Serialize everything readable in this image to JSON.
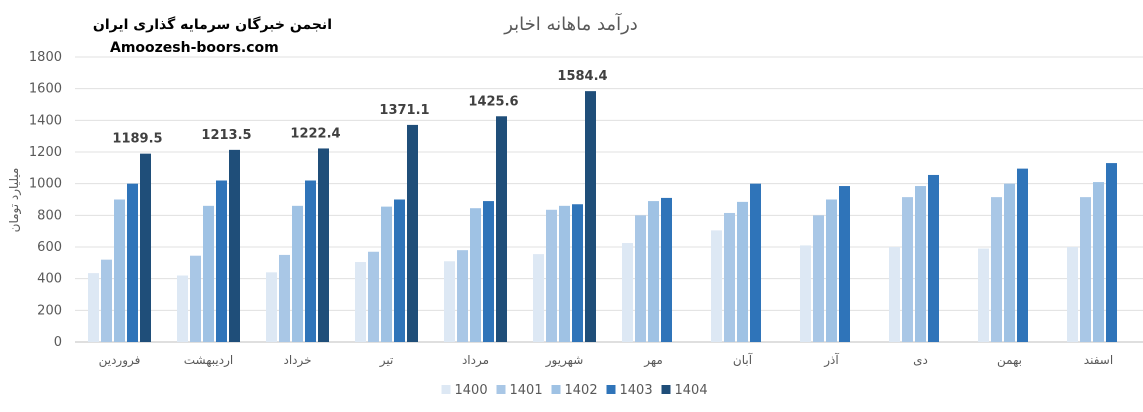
{
  "watermark": {
    "line1": "انجمن خبرگان سرمایه گذاری ایران",
    "line2": "Amoozesh-boors.com"
  },
  "chart_data": {
    "type": "bar",
    "title": "درآمد ماهانه  اخابر",
    "ylabel": "میلیارد تومان",
    "xlabel": "",
    "ylim": [
      0,
      1800
    ],
    "yticks": [
      0,
      200,
      400,
      600,
      800,
      1000,
      1200,
      1400,
      1600,
      1800
    ],
    "grid": true,
    "legend_position": "bottom",
    "categories": [
      "فروردین",
      "اردیبهشت",
      "خرداد",
      "تیر",
      "مرداد",
      "شهریور",
      "مهر",
      "آبان",
      "آذر",
      "دی",
      "بهمن",
      "اسفند"
    ],
    "series": [
      {
        "name": "1400",
        "color": "#dde8f4",
        "values": [
          435,
          420,
          440,
          505,
          510,
          555,
          625,
          705,
          610,
          600,
          590,
          600
        ]
      },
      {
        "name": "1401",
        "color": "#a9c7e6",
        "values": [
          520,
          545,
          550,
          570,
          580,
          835,
          800,
          815,
          800,
          915,
          915,
          915
        ]
      },
      {
        "name": "1402",
        "color": "#9fc2e4",
        "values": [
          900,
          860,
          860,
          855,
          845,
          860,
          890,
          885,
          900,
          985,
          1000,
          1010
        ]
      },
      {
        "name": "1403",
        "color": "#2f74b9",
        "values": [
          1000,
          1020,
          1020,
          900,
          890,
          870,
          910,
          1000,
          985,
          1055,
          1095,
          1130
        ]
      },
      {
        "name": "1404",
        "color": "#1f4e79",
        "values": [
          1189.5,
          1213.5,
          1222.4,
          1371.1,
          1425.6,
          1584.4,
          null,
          null,
          null,
          null,
          null,
          null
        ]
      }
    ],
    "data_labels": [
      "1189.5",
      "1213.5",
      "1222.4",
      "1371.1",
      "1425.6",
      "1584.4"
    ]
  }
}
